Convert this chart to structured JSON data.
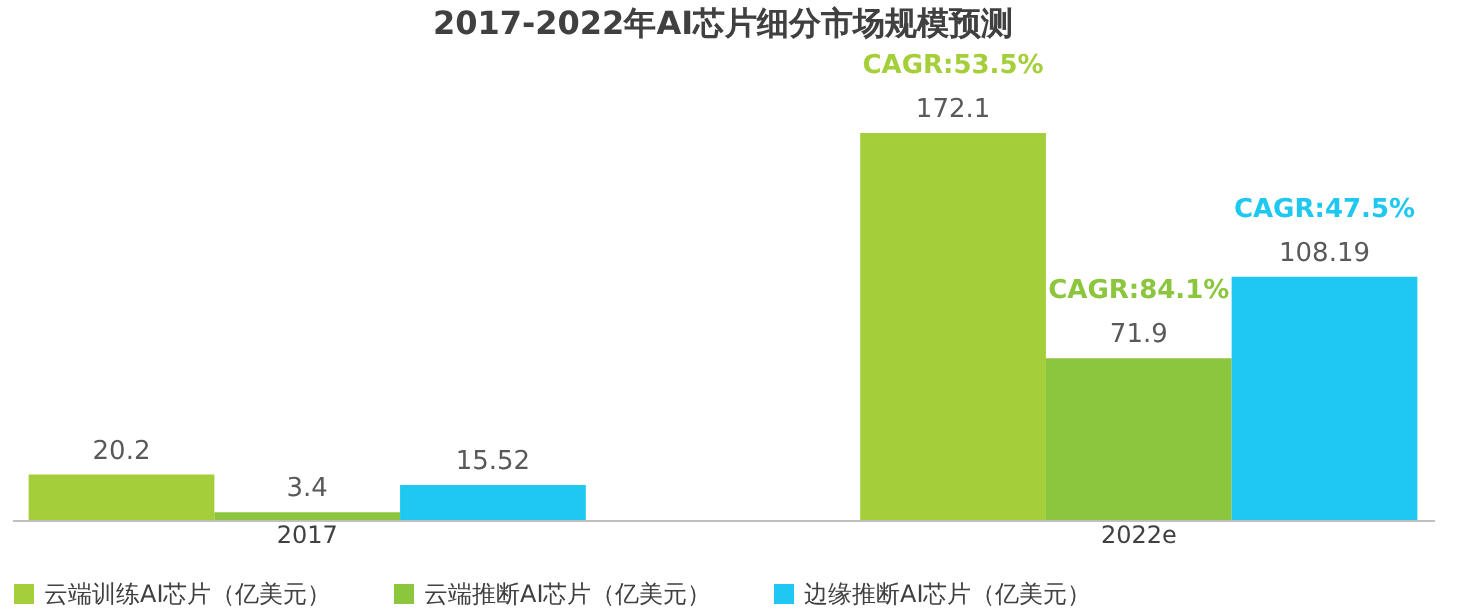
{
  "chart_data": {
    "type": "bar",
    "title": "2017-2022年AI芯片细分市场规模预测",
    "categories": [
      "2017",
      "2022e"
    ],
    "series": [
      {
        "name": "云端训练AI芯片（亿美元）",
        "color": "#a5cf3a",
        "values": [
          20.2,
          172.1
        ]
      },
      {
        "name": "云端推断AI芯片（亿美元）",
        "color": "#8cc63f",
        "values": [
          3.4,
          71.9
        ]
      },
      {
        "name": "边缘推断AI芯片（亿美元）",
        "color": "#1ec8f0",
        "values": [
          15.52,
          108.19
        ]
      }
    ],
    "annotations": [
      "CAGR:53.5%",
      "CAGR:84.1%",
      "CAGR:47.5%"
    ],
    "data_labels": true,
    "legend": "bottom",
    "grid": false
  }
}
